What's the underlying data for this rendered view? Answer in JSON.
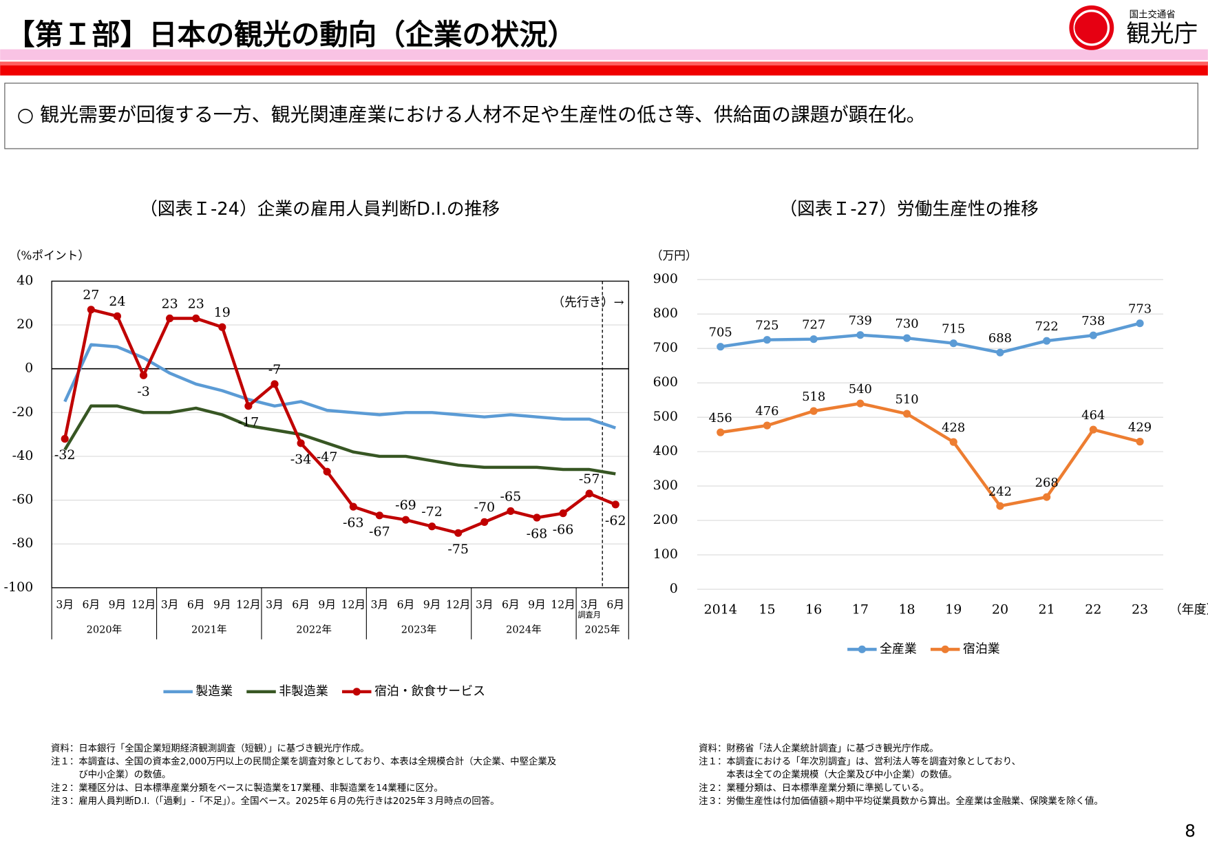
{
  "header": {
    "title": "【第Ｉ部】日本の観光の動向（企業の状況）",
    "logo_org": "国土交通省",
    "logo_name": "観光庁"
  },
  "summary": "○ 観光需要が回復する一方、観光関連産業における人材不足や生産性の低さ等、供給面の課題が顕在化。",
  "chart_data": [
    {
      "type": "line",
      "title": "（図表Ｉ-24）企業の雇用人員判断D.I.の推移",
      "y_unit_label": "（%ポイント）",
      "categories": [
        "3月",
        "6月",
        "9月",
        "12月",
        "3月",
        "6月",
        "9月",
        "12月",
        "3月",
        "6月",
        "9月",
        "12月",
        "3月",
        "6月",
        "9月",
        "12月",
        "3月",
        "6月",
        "9月",
        "12月",
        "3月",
        "6月"
      ],
      "x_groups": [
        "2020年",
        "2021年",
        "2022年",
        "2023年",
        "2024年",
        "2025年"
      ],
      "annotations": [
        "（先行き）→",
        "調査月"
      ],
      "ylim": [
        -100,
        40
      ],
      "yticks": [
        -100,
        -80,
        -60,
        -40,
        -20,
        0,
        20,
        40
      ],
      "grid": true,
      "series": [
        {
          "name": "製造業",
          "color": "#5b9bd5",
          "marker": false,
          "labels": false,
          "values": [
            -15,
            11,
            10,
            5,
            -2,
            -7,
            -10,
            -14,
            -17,
            -15,
            -19,
            -20,
            -21,
            -20,
            -20,
            -21,
            -22,
            -21,
            -22,
            -23,
            -23,
            -27
          ]
        },
        {
          "name": "非製造業",
          "color": "#375623",
          "marker": false,
          "labels": false,
          "values": [
            -37,
            -17,
            -17,
            -20,
            -20,
            -18,
            -21,
            -26,
            -28,
            -30,
            -34,
            -38,
            -40,
            -40,
            -42,
            -44,
            -45,
            -45,
            -45,
            -46,
            -46,
            -48
          ]
        },
        {
          "name": "宿泊・飲食サービス",
          "color": "#c00000",
          "marker": true,
          "labels": true,
          "values": [
            -32,
            27,
            24,
            -3,
            23,
            23,
            19,
            -17,
            -7,
            -34,
            -47,
            -63,
            -67,
            -69,
            -72,
            -75,
            -70,
            -65,
            -68,
            -66,
            -57,
            -62
          ]
        }
      ],
      "notes": [
        "資料：日本銀行「全国企業短期経済観測調査（短観）」に基づき観光庁作成。",
        "注１：本調査は、全国の資本金2,000万円以上の民間企業を調査対象としており、本表は全規模合計（大企業、中堅企業及",
        "　　　び中小企業）の数値。",
        "注２：業種区分は、日本標準産業分類をベースに製造業を17業種、非製造業を14業種に区分。",
        "注３：雇用人員判断D.I.（「過剰」-「不足」）。全国ベース。2025年６月の先行きは2025年３月時点の回答。"
      ]
    },
    {
      "type": "line",
      "title": "（図表Ｉ-27）労働生産性の推移",
      "y_unit_label": "（万円）",
      "x_label": "（年度）",
      "categories": [
        "2014",
        "15",
        "16",
        "17",
        "18",
        "19",
        "20",
        "21",
        "22",
        "23"
      ],
      "ylim": [
        0,
        900
      ],
      "yticks": [
        0,
        100,
        200,
        300,
        400,
        500,
        600,
        700,
        800,
        900
      ],
      "grid": true,
      "series": [
        {
          "name": "全産業",
          "color": "#5b9bd5",
          "marker": true,
          "labels": true,
          "values": [
            705,
            725,
            727,
            739,
            730,
            715,
            688,
            722,
            738,
            773
          ]
        },
        {
          "name": "宿泊業",
          "color": "#ed7d31",
          "marker": true,
          "labels": true,
          "values": [
            456,
            476,
            518,
            540,
            510,
            428,
            242,
            268,
            464,
            429
          ]
        }
      ],
      "notes": [
        "資料：財務省「法人企業統計調査」に基づき観光庁作成。",
        "注１：本調査における「年次別調査」は、営利法人等を調査対象としており、",
        "　　　本表は全ての企業規模（大企業及び中小企業）の数値。",
        "注２：業種分類は、日本標準産業分類に準拠している。",
        "注３：労働生産性は付加価値額÷期中平均従業員数から算出。全産業は金融業、保険業を除く値。"
      ]
    }
  ],
  "page_number": "8"
}
